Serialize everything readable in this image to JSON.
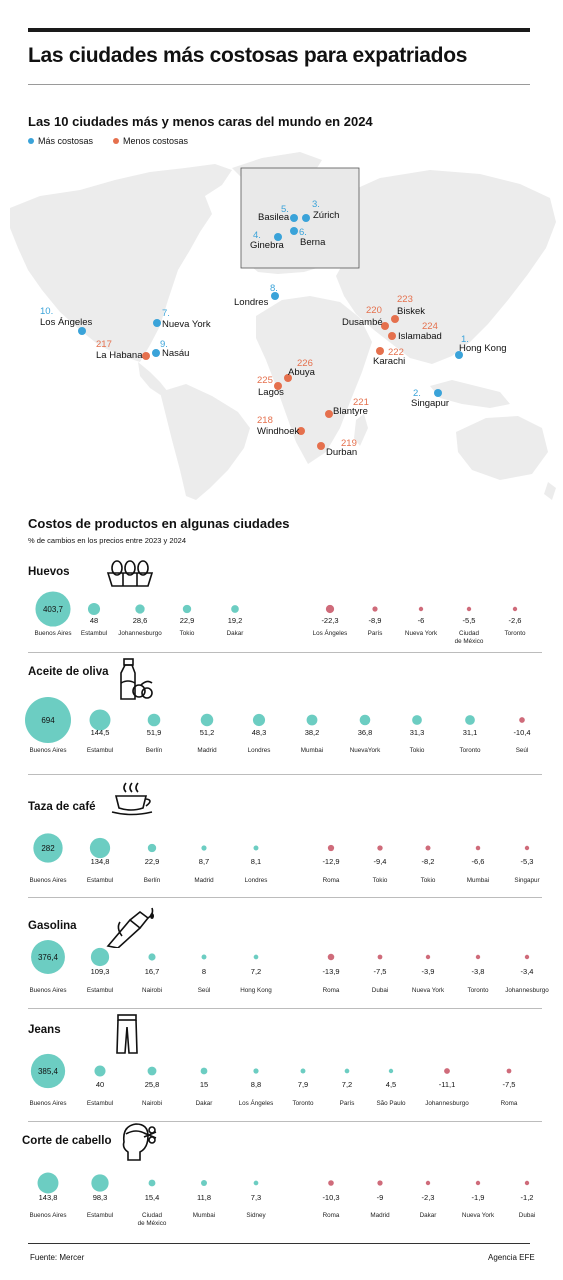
{
  "header": {
    "title": "Las ciudades más costosas para expatriados"
  },
  "map_section": {
    "title": "Las 10 ciudades más y menos caras del mundo en 2024",
    "legend": [
      {
        "label": "Más costosas",
        "color": "#3aa3d9"
      },
      {
        "label": "Menos costosas",
        "color": "#e5704d"
      }
    ],
    "cities_expensive": [
      {
        "rank": "1.",
        "name": "Hong Kong"
      },
      {
        "rank": "2.",
        "name": "Singapur"
      },
      {
        "rank": "3.",
        "name": "Zúrich"
      },
      {
        "rank": "4.",
        "name": "Ginebra"
      },
      {
        "rank": "5.",
        "name": "Basilea"
      },
      {
        "rank": "6.",
        "name": "Berna"
      },
      {
        "rank": "7.",
        "name": "Nueva York"
      },
      {
        "rank": "8.",
        "name": "Londres"
      },
      {
        "rank": "9.",
        "name": "Nasáu"
      },
      {
        "rank": "10.",
        "name": "Los Ángeles"
      }
    ],
    "cities_cheapest": [
      {
        "rank": "217",
        "name": "La Habana"
      },
      {
        "rank": "218",
        "name": "Windhoek"
      },
      {
        "rank": "219",
        "name": "Durban"
      },
      {
        "rank": "220",
        "name": "Dusambé"
      },
      {
        "rank": "221",
        "name": "Blantyre"
      },
      {
        "rank": "222",
        "name": "Karachi"
      },
      {
        "rank": "223",
        "name": "Biskek"
      },
      {
        "rank": "224",
        "name": "Islamabad"
      },
      {
        "rank": "225",
        "name": "Lagos"
      },
      {
        "rank": "226",
        "name": "Abuya"
      }
    ]
  },
  "costs_section": {
    "title": "Costos de productos en algunas ciudades",
    "subtitle": "% de cambios en los precios entre 2023 y 2024"
  },
  "chart_data": {
    "type": "bubble",
    "unit": "%",
    "positive_color": "#6ccdc2",
    "negative_color": "#cf6b7a",
    "categories": [
      {
        "name": "Huevos",
        "icon": "eggs-carton-icon",
        "points": [
          {
            "city": "Buenos Aires",
            "value": 403.7,
            "label": "403,7"
          },
          {
            "city": "Estambul",
            "value": 48,
            "label": "48"
          },
          {
            "city": "Johannesburgo",
            "value": 28.6,
            "label": "28,6"
          },
          {
            "city": "Tokio",
            "value": 22.9,
            "label": "22,9"
          },
          {
            "city": "Dakar",
            "value": 19.2,
            "label": "19,2"
          },
          {
            "city": "Los Ángeles",
            "value": -22.3,
            "label": "-22,3"
          },
          {
            "city": "París",
            "value": -8.9,
            "label": "-8,9"
          },
          {
            "city": "Nueva York",
            "value": -6,
            "label": "-6"
          },
          {
            "city": "Ciudad de México",
            "value": -5.5,
            "label": "-5,5"
          },
          {
            "city": "Toronto",
            "value": -2.6,
            "label": "-2,6"
          }
        ]
      },
      {
        "name": "Aceite de oliva",
        "icon": "olive-oil-bottle-icon",
        "points": [
          {
            "city": "Buenos Aires",
            "value": 694,
            "label": "694"
          },
          {
            "city": "Estambul",
            "value": 144.5,
            "label": "144,5"
          },
          {
            "city": "Berlín",
            "value": 51.9,
            "label": "51,9"
          },
          {
            "city": "Madrid",
            "value": 51.2,
            "label": "51,2"
          },
          {
            "city": "Londres",
            "value": 48.3,
            "label": "48,3"
          },
          {
            "city": "Mumbai",
            "value": 38.2,
            "label": "38,2"
          },
          {
            "city": "NuevaYork",
            "value": 36.8,
            "label": "36,8"
          },
          {
            "city": "Tokio",
            "value": 31.3,
            "label": "31,3"
          },
          {
            "city": "Toronto",
            "value": 31.1,
            "label": "31,1"
          },
          {
            "city": "Seúl",
            "value": -10.4,
            "label": "-10,4"
          }
        ]
      },
      {
        "name": "Taza de café",
        "icon": "coffee-cup-icon",
        "points": [
          {
            "city": "Buenos Aires",
            "value": 282,
            "label": "282"
          },
          {
            "city": "Estambul",
            "value": 134.8,
            "label": "134,8"
          },
          {
            "city": "Berlín",
            "value": 22.9,
            "label": "22,9"
          },
          {
            "city": "Madrid",
            "value": 8.7,
            "label": "8,7"
          },
          {
            "city": "Londres",
            "value": 8.1,
            "label": "8,1"
          },
          {
            "city": "Roma",
            "value": -12.9,
            "label": "-12,9"
          },
          {
            "city": "Tokio",
            "value": -9.4,
            "label": "-9,4"
          },
          {
            "city": "Tokio",
            "value": -8.2,
            "label": "-8,2"
          },
          {
            "city": "Mumbai",
            "value": -6.6,
            "label": "-6,6"
          },
          {
            "city": "Singapur",
            "value": -5.3,
            "label": "-5,3"
          }
        ]
      },
      {
        "name": "Gasolina",
        "icon": "fuel-nozzle-icon",
        "points": [
          {
            "city": "Buenos Aires",
            "value": 376.4,
            "label": "376,4"
          },
          {
            "city": "Estambul",
            "value": 109.3,
            "label": "109,3"
          },
          {
            "city": "Nairobi",
            "value": 16.7,
            "label": "16,7"
          },
          {
            "city": "Seúl",
            "value": 8,
            "label": "8"
          },
          {
            "city": "Hong Kong",
            "value": 7.2,
            "label": "7,2"
          },
          {
            "city": "Roma",
            "value": -13.9,
            "label": "-13,9"
          },
          {
            "city": "Dubai",
            "value": -7.5,
            "label": "-7,5"
          },
          {
            "city": "Nueva York",
            "value": -3.9,
            "label": "-3,9"
          },
          {
            "city": "Toronto",
            "value": -3.8,
            "label": "-3,8"
          },
          {
            "city": "Johannesburgo",
            "value": -3.4,
            "label": "-3,4"
          }
        ]
      },
      {
        "name": "Jeans",
        "icon": "jeans-icon",
        "points": [
          {
            "city": "Buenos Aires",
            "value": 385.4,
            "label": "385,4"
          },
          {
            "city": "Estambul",
            "value": 40,
            "label": "40"
          },
          {
            "city": "Nairobi",
            "value": 25.8,
            "label": "25,8"
          },
          {
            "city": "Dakar",
            "value": 15,
            "label": "15"
          },
          {
            "city": "Los Ángeles",
            "value": 8.8,
            "label": "8,8"
          },
          {
            "city": "Toronto",
            "value": 7.9,
            "label": "7,9"
          },
          {
            "city": "París",
            "value": 7.2,
            "label": "7,2"
          },
          {
            "city": "São Paulo",
            "value": 4.5,
            "label": "4,5"
          },
          {
            "city": "Johannesburgo",
            "value": -11.1,
            "label": "-11,1"
          },
          {
            "city": "Roma",
            "value": -7.5,
            "label": "-7,5"
          }
        ]
      },
      {
        "name": "Corte de cabello",
        "icon": "haircut-icon",
        "points": [
          {
            "city": "Buenos Aires",
            "value": 143.8,
            "label": "143,8"
          },
          {
            "city": "Estambul",
            "value": 98.3,
            "label": "98,3"
          },
          {
            "city": "Ciudad de México",
            "value": 15.4,
            "label": "15,4"
          },
          {
            "city": "Mumbai",
            "value": 11.8,
            "label": "11,8"
          },
          {
            "city": "Sidney",
            "value": 7.3,
            "label": "7,3"
          },
          {
            "city": "Roma",
            "value": -10.3,
            "label": "-10,3"
          },
          {
            "city": "Madrid",
            "value": -9,
            "label": "-9"
          },
          {
            "city": "Dakar",
            "value": -2.3,
            "label": "-2,3"
          },
          {
            "city": "Nueva York",
            "value": -1.9,
            "label": "-1,9"
          },
          {
            "city": "Dubai",
            "value": -1.2,
            "label": "-1,2"
          }
        ]
      }
    ]
  },
  "footer": {
    "source": "Fuente: Mercer",
    "agency": "Agencia EFE"
  }
}
